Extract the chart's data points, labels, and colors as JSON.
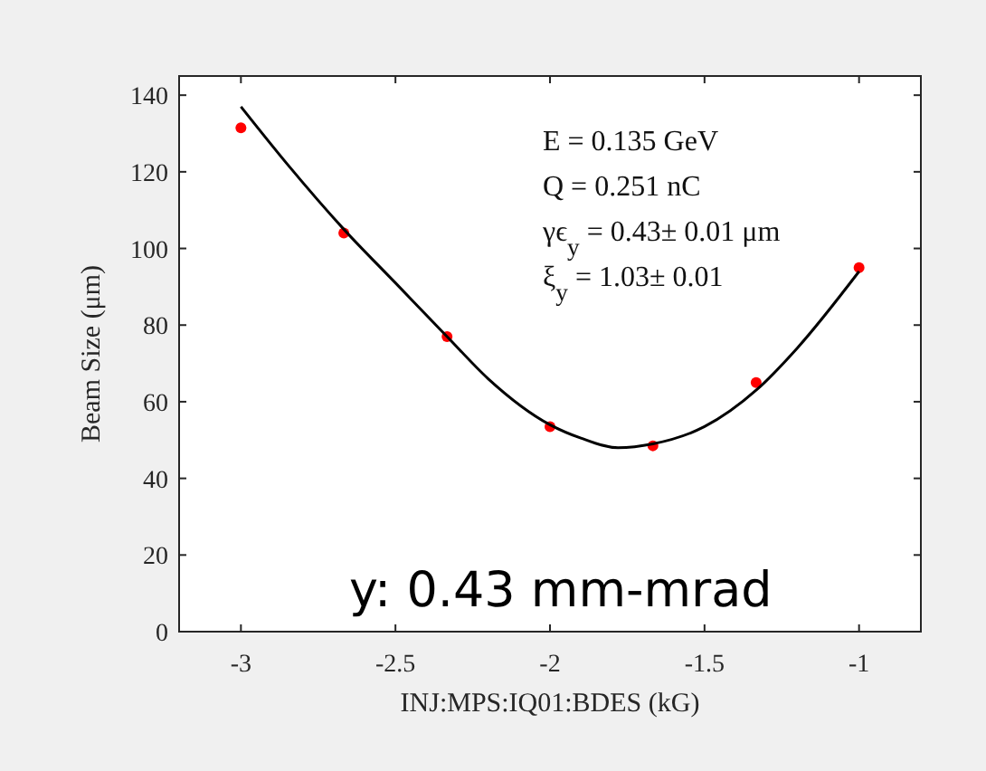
{
  "chart_data": {
    "type": "scatter",
    "xlabel": "INJ:MPS:IQ01:BDES  (kG)",
    "ylabel": "Beam Size  (μm)",
    "xlim": [
      -3.2,
      -0.8
    ],
    "xticks": [
      -3,
      -2.5,
      -2,
      -1.5,
      -1
    ],
    "ylim": [
      0,
      145
    ],
    "yticks": [
      0,
      20,
      40,
      60,
      80,
      100,
      120,
      140
    ],
    "grid": false,
    "series": [
      {
        "color": "#ff0000",
        "marker": "circle",
        "x": [
          -3,
          -2.667,
          -2.333,
          -2,
          -1.667,
          -1.333,
          -1
        ],
        "values": [
          131.5,
          104,
          77,
          53.5,
          48.5,
          65,
          95
        ]
      },
      {
        "type": "line",
        "color": "#000000",
        "line_style": "solid",
        "marker": "none",
        "x": [
          -3,
          -2.85,
          -2.667,
          -2.5,
          -2.333,
          -2.2,
          -2,
          -1.9,
          -1.78,
          -1.667,
          -1.5,
          -1.333,
          -1.2,
          -1
        ],
        "values": [
          137,
          122,
          105,
          91,
          77,
          66,
          54,
          50.5,
          48,
          49,
          53.5,
          63,
          74,
          94
        ]
      }
    ],
    "annotations": [
      "E = 0.135 GeV",
      "Q = 0.251 nC",
      "γϵ$_{y}$ = 0.43± 0.01 μm",
      "ξ$_{y}$ = 1.03± 0.01",
      "y: 0.43 mm-mrad"
    ]
  }
}
